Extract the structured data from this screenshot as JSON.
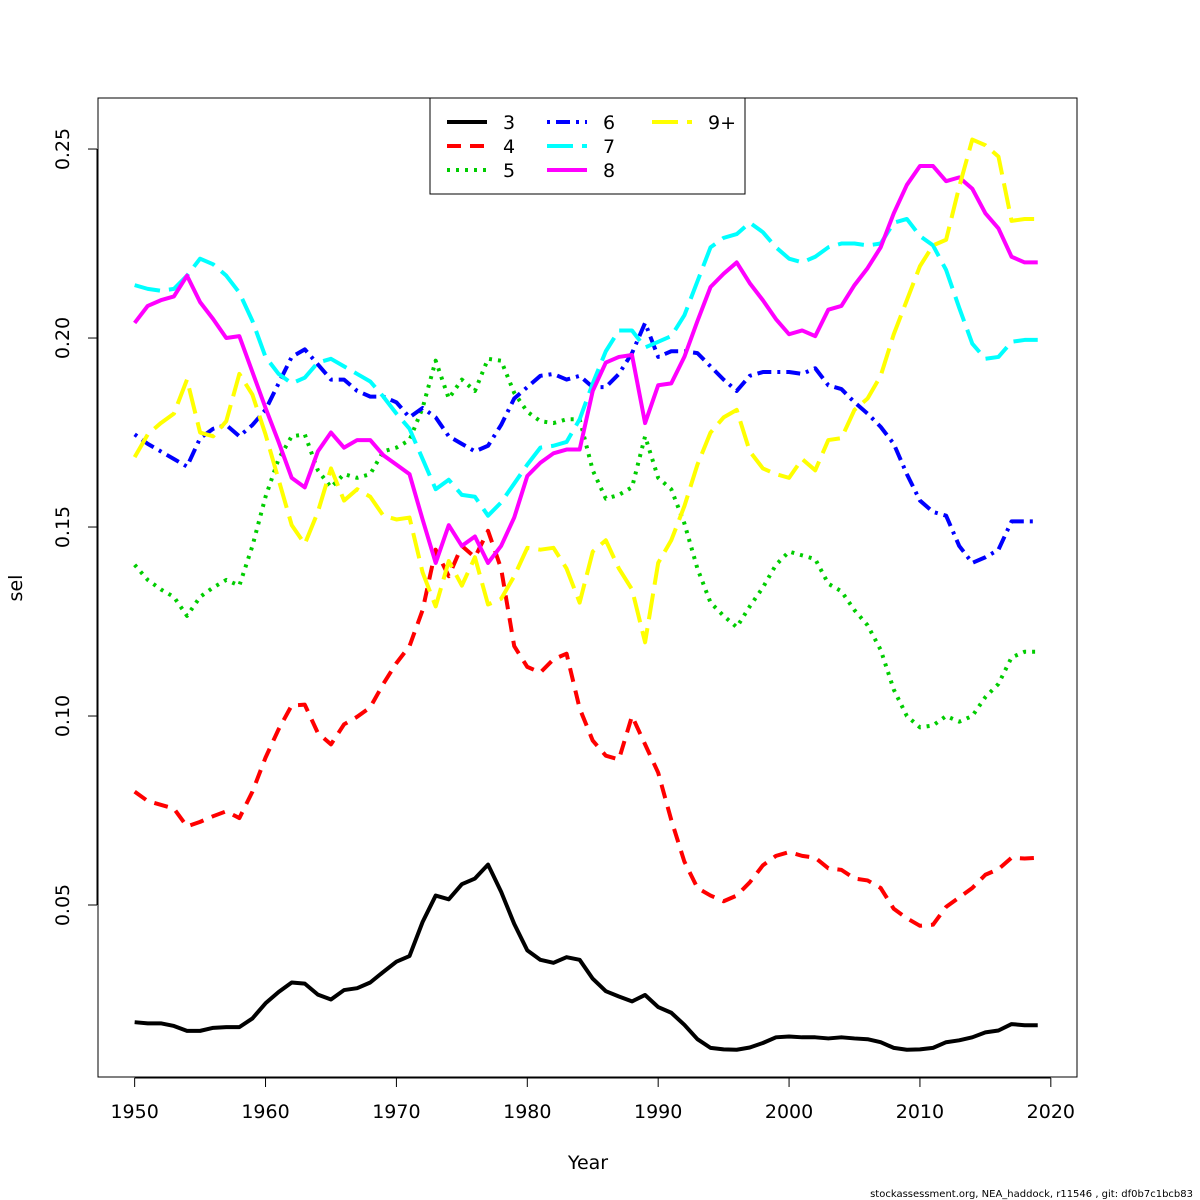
{
  "chart_data": {
    "type": "line",
    "xlabel": "Year",
    "ylabel": "sel",
    "xlim": [
      1947.2,
      2022.0
    ],
    "ylim": [
      0.0045,
      0.2635
    ],
    "x_ticks": [
      1950,
      1960,
      1970,
      1980,
      1990,
      2000,
      2010,
      2020
    ],
    "y_ticks": [
      0.05,
      0.1,
      0.15,
      0.2,
      0.25
    ],
    "y_tick_labels": [
      "0.05",
      "0.10",
      "0.15",
      "0.20",
      "0.25"
    ],
    "legend_position": "top-center",
    "grid": false,
    "footer": "stockassessment.org, NEA_haddock, r11546 , git: df0b7c1bcb83",
    "start_year": 1950,
    "series": [
      {
        "name": "3",
        "color": "#000000",
        "dash": "solid",
        "values": [
          0.019,
          0.0187,
          0.0187,
          0.018,
          0.0167,
          0.0167,
          0.0175,
          0.0177,
          0.0177,
          0.02,
          0.024,
          0.027,
          0.0295,
          0.0292,
          0.0263,
          0.025,
          0.0275,
          0.028,
          0.0295,
          0.0323,
          0.035,
          0.0365,
          0.0455,
          0.0525,
          0.0515,
          0.0555,
          0.057,
          0.0607,
          0.0535,
          0.045,
          0.038,
          0.0355,
          0.0347,
          0.0362,
          0.0355,
          0.0305,
          0.0272,
          0.0258,
          0.0245,
          0.0262,
          0.023,
          0.0215,
          0.0183,
          0.0145,
          0.0122,
          0.0118,
          0.0117,
          0.0123,
          0.0135,
          0.015,
          0.0152,
          0.015,
          0.015,
          0.0147,
          0.015,
          0.0147,
          0.0145,
          0.0137,
          0.0122,
          0.0117,
          0.0118,
          0.0122,
          0.0137,
          0.0142,
          0.015,
          0.0163,
          0.0168,
          0.0185,
          0.0182,
          0.0182
        ]
      },
      {
        "name": "4",
        "color": "#ff0000",
        "dash": "dashed",
        "values": [
          0.08,
          0.0775,
          0.0765,
          0.0755,
          0.0708,
          0.072,
          0.0735,
          0.0748,
          0.073,
          0.08,
          0.089,
          0.0965,
          0.1028,
          0.103,
          0.0955,
          0.0925,
          0.0978,
          0.0998,
          0.1023,
          0.1085,
          0.114,
          0.1185,
          0.128,
          0.144,
          0.137,
          0.145,
          0.142,
          0.149,
          0.139,
          0.1185,
          0.113,
          0.1115,
          0.115,
          0.1165,
          0.102,
          0.0935,
          0.0895,
          0.0885,
          0.1,
          0.0925,
          0.085,
          0.0725,
          0.0615,
          0.0545,
          0.0525,
          0.051,
          0.0525,
          0.056,
          0.0605,
          0.063,
          0.064,
          0.063,
          0.0625,
          0.0597,
          0.0593,
          0.057,
          0.0565,
          0.0545,
          0.049,
          0.0465,
          0.0445,
          0.0448,
          0.0495,
          0.052,
          0.0545,
          0.058,
          0.0595,
          0.0625,
          0.0623,
          0.0625
        ]
      },
      {
        "name": "5",
        "color": "#00cd00",
        "dash": "dotted",
        "values": [
          0.14,
          0.136,
          0.1335,
          0.1315,
          0.1265,
          0.1315,
          0.134,
          0.136,
          0.1345,
          0.145,
          0.158,
          0.168,
          0.174,
          0.1745,
          0.165,
          0.1605,
          0.164,
          0.163,
          0.164,
          0.17,
          0.171,
          0.173,
          0.1815,
          0.194,
          0.184,
          0.189,
          0.186,
          0.1945,
          0.194,
          0.1855,
          0.1805,
          0.178,
          0.1775,
          0.1785,
          0.1785,
          0.165,
          0.1575,
          0.1585,
          0.1605,
          0.174,
          0.163,
          0.16,
          0.151,
          0.139,
          0.13,
          0.1265,
          0.1235,
          0.129,
          0.134,
          0.14,
          0.1435,
          0.1425,
          0.1415,
          0.135,
          0.133,
          0.128,
          0.124,
          0.1175,
          0.107,
          0.1,
          0.097,
          0.0975,
          0.1,
          0.0985,
          0.1,
          0.105,
          0.1085,
          0.1155,
          0.117,
          0.117
        ]
      },
      {
        "name": "6",
        "color": "#0000ff",
        "dash": "dashdot",
        "values": [
          0.1745,
          0.172,
          0.17,
          0.168,
          0.166,
          0.1735,
          0.176,
          0.177,
          0.174,
          0.177,
          0.181,
          0.188,
          0.195,
          0.197,
          0.193,
          0.189,
          0.189,
          0.186,
          0.1845,
          0.1845,
          0.183,
          0.179,
          0.1815,
          0.179,
          0.174,
          0.172,
          0.17,
          0.1715,
          0.177,
          0.184,
          0.187,
          0.19,
          0.1905,
          0.189,
          0.19,
          0.187,
          0.187,
          0.1905,
          0.196,
          0.204,
          0.195,
          0.1965,
          0.1965,
          0.196,
          0.1925,
          0.189,
          0.186,
          0.19,
          0.191,
          0.191,
          0.191,
          0.1905,
          0.192,
          0.1875,
          0.1865,
          0.183,
          0.18,
          0.1765,
          0.172,
          0.164,
          0.157,
          0.154,
          0.153,
          0.145,
          0.1405,
          0.142,
          0.144,
          0.1515,
          0.1515,
          0.1515
        ]
      },
      {
        "name": "7",
        "color": "#00ffff",
        "dash": "longdash",
        "values": [
          0.214,
          0.213,
          0.2125,
          0.213,
          0.2165,
          0.221,
          0.2195,
          0.2165,
          0.212,
          0.2045,
          0.195,
          0.1905,
          0.188,
          0.1895,
          0.1935,
          0.1945,
          0.1925,
          0.1905,
          0.1885,
          0.1845,
          0.18,
          0.176,
          0.168,
          0.16,
          0.1625,
          0.1585,
          0.158,
          0.153,
          0.1565,
          0.1615,
          0.1665,
          0.171,
          0.1715,
          0.1725,
          0.1785,
          0.188,
          0.1965,
          0.202,
          0.202,
          0.1975,
          0.199,
          0.2005,
          0.206,
          0.215,
          0.224,
          0.2265,
          0.2275,
          0.2305,
          0.228,
          0.224,
          0.221,
          0.22,
          0.2215,
          0.224,
          0.225,
          0.225,
          0.2245,
          0.225,
          0.2305,
          0.2315,
          0.227,
          0.2245,
          0.218,
          0.208,
          0.1985,
          0.1945,
          0.195,
          0.199,
          0.1995,
          0.1995
        ]
      },
      {
        "name": "8",
        "color": "#ff00ff",
        "dash": "solid",
        "values": [
          0.204,
          0.2085,
          0.21,
          0.211,
          0.2165,
          0.2095,
          0.205,
          0.2,
          0.2005,
          0.191,
          0.1815,
          0.1725,
          0.163,
          0.1605,
          0.17,
          0.175,
          0.171,
          0.173,
          0.173,
          0.169,
          0.1665,
          0.164,
          0.152,
          0.1405,
          0.1505,
          0.145,
          0.1475,
          0.1405,
          0.145,
          0.1525,
          0.1635,
          0.167,
          0.1695,
          0.1705,
          0.1705,
          0.186,
          0.1935,
          0.195,
          0.1955,
          0.1775,
          0.1875,
          0.188,
          0.195,
          0.2045,
          0.2135,
          0.217,
          0.22,
          0.2145,
          0.21,
          0.205,
          0.201,
          0.202,
          0.2005,
          0.2075,
          0.2085,
          0.214,
          0.2185,
          0.224,
          0.233,
          0.2405,
          0.2455,
          0.2455,
          0.2415,
          0.2425,
          0.2395,
          0.233,
          0.229,
          0.2215,
          0.22,
          0.22
        ]
      },
      {
        "name": "9+",
        "color": "#ffff00",
        "dash": "longdash",
        "values": [
          0.1685,
          0.1745,
          0.1775,
          0.18,
          0.189,
          0.175,
          0.174,
          0.178,
          0.1905,
          0.185,
          0.1745,
          0.1625,
          0.1505,
          0.1455,
          0.154,
          0.1655,
          0.157,
          0.16,
          0.158,
          0.153,
          0.152,
          0.1525,
          0.138,
          0.129,
          0.141,
          0.1345,
          0.142,
          0.1295,
          0.131,
          0.137,
          0.1445,
          0.144,
          0.1445,
          0.139,
          0.13,
          0.1435,
          0.1465,
          0.139,
          0.1335,
          0.1195,
          0.1405,
          0.1465,
          0.1555,
          0.1665,
          0.175,
          0.179,
          0.181,
          0.17,
          0.1655,
          0.164,
          0.163,
          0.168,
          0.165,
          0.173,
          0.1735,
          0.181,
          0.184,
          0.19,
          0.201,
          0.21,
          0.219,
          0.2245,
          0.226,
          0.24,
          0.2525,
          0.251,
          0.248,
          0.231,
          0.2315,
          0.2315
        ]
      }
    ]
  }
}
